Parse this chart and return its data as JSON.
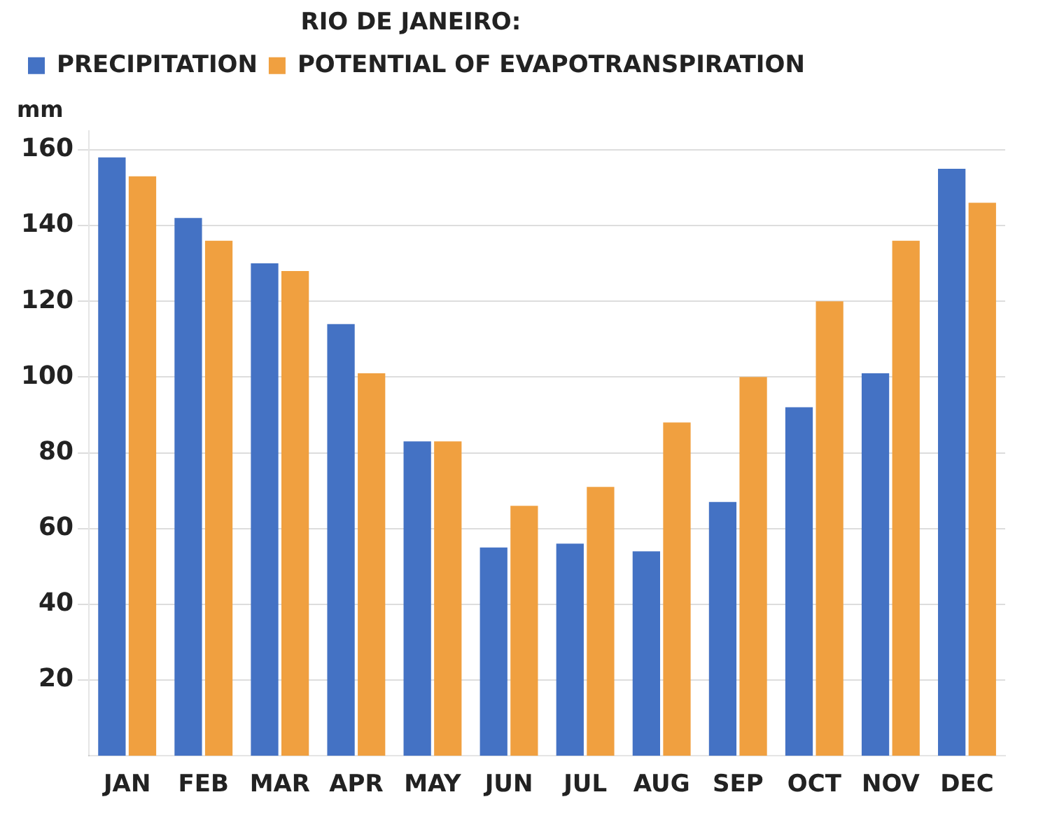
{
  "chart_data": {
    "type": "bar",
    "legend_title": "RIO DE JANEIRO:",
    "ylabel": "mm",
    "categories": [
      "JAN",
      "FEB",
      "MAR",
      "APR",
      "MAY",
      "JUN",
      "JUL",
      "AUG",
      "SEP",
      "OCT",
      "NOV",
      "DEC"
    ],
    "series": [
      {
        "name": "PRECIPITATION",
        "color": "#4472c4",
        "values": [
          158,
          142,
          130,
          114,
          83,
          55,
          56,
          54,
          67,
          92,
          101,
          155
        ]
      },
      {
        "name": "POTENTIAL OF EVAPOTRANSPIRATION",
        "color": "#f0a040",
        "values": [
          153,
          136,
          128,
          101,
          83,
          66,
          71,
          88,
          100,
          120,
          136,
          146
        ]
      }
    ],
    "ylim": [
      0,
      165
    ],
    "yticks": [
      20,
      40,
      60,
      80,
      100,
      120,
      140,
      160
    ],
    "grid": "y",
    "legend": "top left"
  }
}
